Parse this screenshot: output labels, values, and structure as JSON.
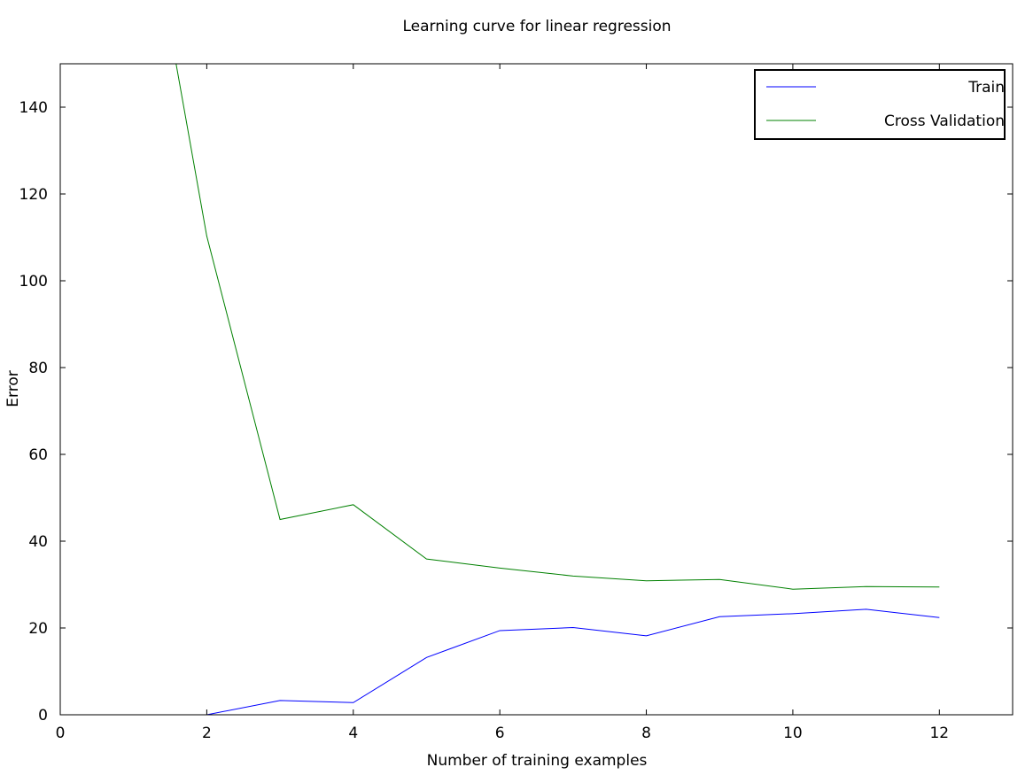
{
  "chart_data": {
    "type": "line",
    "title": "Learning curve for linear regression",
    "xlabel": "Number of training examples",
    "ylabel": "Error",
    "xlim": [
      0,
      13
    ],
    "ylim": [
      0,
      150
    ],
    "xticks": [
      0,
      2,
      4,
      6,
      8,
      10,
      12
    ],
    "yticks": [
      0,
      20,
      40,
      60,
      80,
      100,
      120,
      140
    ],
    "grid": false,
    "legend_position": "top-right",
    "series": [
      {
        "name": "Train",
        "color": "#0000ff",
        "x": [
          1,
          2,
          3,
          4,
          5,
          6,
          7,
          8,
          9,
          10,
          11,
          12
        ],
        "y": [
          0.0,
          0.0,
          3.3,
          2.8,
          13.2,
          19.4,
          20.1,
          18.2,
          22.6,
          23.3,
          24.3,
          22.4
        ]
      },
      {
        "name": "Cross Validation",
        "color": "#008000",
        "x": [
          1,
          2,
          3,
          4,
          5,
          6,
          7,
          8,
          9,
          10,
          11,
          12
        ],
        "y": [
          205.1,
          110.3,
          45.0,
          48.4,
          35.9,
          33.8,
          31.97,
          30.86,
          31.18,
          28.94,
          29.55,
          29.43
        ]
      }
    ]
  }
}
